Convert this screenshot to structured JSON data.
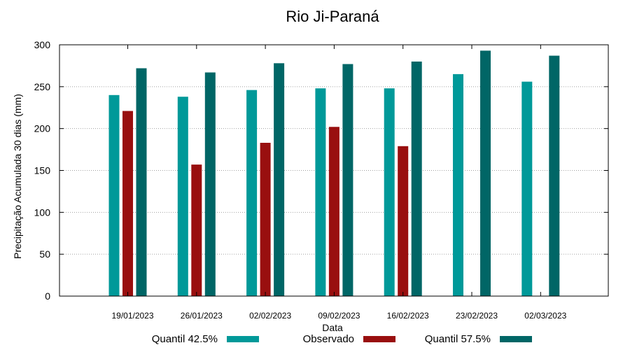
{
  "chart_data": {
    "type": "bar",
    "title": "Rio Ji-Paraná",
    "xlabel": "Data",
    "ylabel": "Precipitação Acumulada 30 dias (mm)",
    "ylim": [
      0,
      300
    ],
    "yticks": [
      0,
      50,
      100,
      150,
      200,
      250,
      300
    ],
    "grid": true,
    "legend_position": "bottom",
    "categories": [
      "19/01/2023",
      "26/01/2023",
      "02/02/2023",
      "09/02/2023",
      "16/02/2023",
      "23/02/2023",
      "02/03/2023"
    ],
    "series": [
      {
        "name": "Quantil 42.5%",
        "color": "#009999",
        "values": [
          240,
          238,
          246,
          248,
          248,
          265,
          256
        ]
      },
      {
        "name": "Observado",
        "color": "#990f0f",
        "values": [
          221,
          157,
          183,
          202,
          179,
          null,
          null
        ]
      },
      {
        "name": "Quantil 57.5%",
        "color": "#006666",
        "values": [
          272,
          267,
          278,
          277,
          280,
          293,
          287
        ]
      }
    ]
  }
}
